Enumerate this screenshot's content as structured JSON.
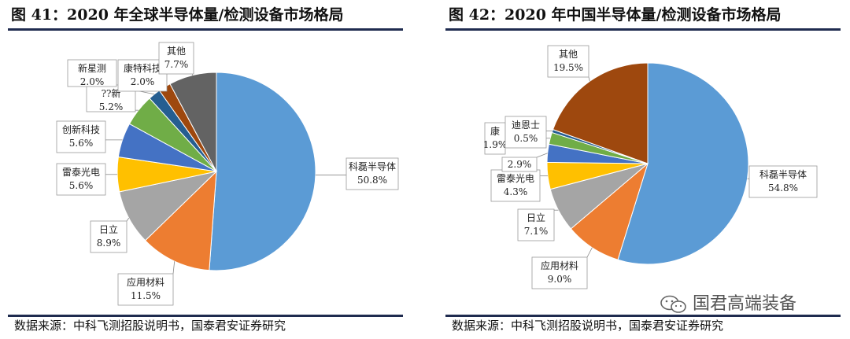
{
  "watermark": {
    "text": "国君高端装备",
    "icon": "wechat-icon"
  },
  "chart_data": [
    {
      "type": "pie",
      "title": "图 41：2020 年全球半导体量/检测设备市场格局",
      "source": "数据来源：中科飞测招股说明书，国泰君安证券研究",
      "slices": [
        {
          "label": "科磊半导体",
          "value": 50.8,
          "value_text": "50.8%",
          "color": "#5b9bd5"
        },
        {
          "label": "应用材料",
          "value": 11.5,
          "value_text": "11.5%",
          "color": "#ed7d31"
        },
        {
          "label": "日立",
          "value": 8.9,
          "value_text": "8.9%",
          "color": "#a5a5a5"
        },
        {
          "label": "雷泰光电",
          "value": 5.6,
          "value_text": "5.6%",
          "color": "#ffc000"
        },
        {
          "label": "创新科技",
          "value": 5.6,
          "value_text": "5.6%",
          "color": "#4472c4"
        },
        {
          "label": "??新",
          "value": 5.2,
          "value_text": "5.2%",
          "color": "#70ad47"
        },
        {
          "label": "新星测",
          "value": 2.0,
          "value_text": "2.0%",
          "color": "#255e91"
        },
        {
          "label": "康特科技",
          "value": 2.0,
          "value_text": "2.0%",
          "color": "#9e480e"
        },
        {
          "label": "其他",
          "value": 7.7,
          "value_text": "7.7%",
          "color": "#636363"
        }
      ]
    },
    {
      "type": "pie",
      "title": "图 42：2020 年中国半导体量/检测设备市场格局",
      "source": "数据来源：中科飞测招股说明书，国泰君安证券研究",
      "slices": [
        {
          "label": "科磊半导体",
          "value": 54.8,
          "value_text": "54.8%",
          "color": "#5b9bd5"
        },
        {
          "label": "应用材料",
          "value": 9.0,
          "value_text": "9.0%",
          "color": "#ed7d31"
        },
        {
          "label": "日立",
          "value": 7.1,
          "value_text": "7.1%",
          "color": "#a5a5a5"
        },
        {
          "label": "雷泰光电",
          "value": 4.3,
          "value_text": "4.3%",
          "color": "#ffc000"
        },
        {
          "label": "",
          "value": 2.9,
          "value_text": "2.9%",
          "color": "#4472c4"
        },
        {
          "label": "康",
          "value": 1.9,
          "value_text": "1.9%",
          "color": "#70ad47"
        },
        {
          "label": "迪恩士",
          "value": 0.5,
          "value_text": "0.5%",
          "color": "#255e91"
        },
        {
          "label": "其他",
          "value": 19.5,
          "value_text": "19.5%",
          "color": "#9e480e"
        }
      ]
    }
  ]
}
